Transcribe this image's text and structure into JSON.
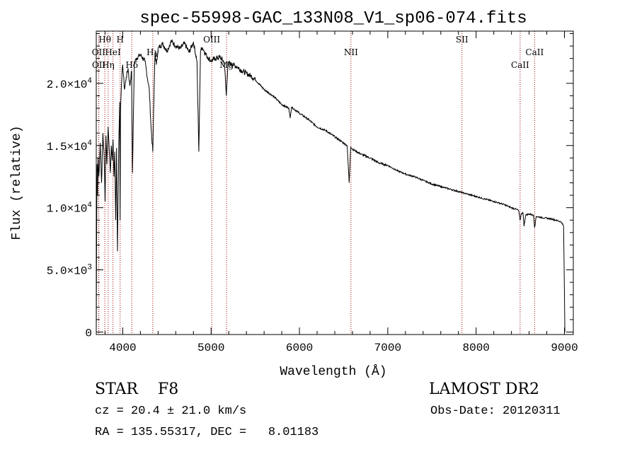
{
  "chart_data": {
    "type": "line",
    "title": "spec-55998-GAC_133N08_V1_sp06-074.fits",
    "xlabel": "Wavelength (Å)",
    "ylabel": "Flux (relative)",
    "xlim": [
      3700,
      9100
    ],
    "ylim": [
      -200,
      24200
    ],
    "x_ticks": [
      4000,
      5000,
      6000,
      7000,
      8000,
      9000
    ],
    "x_tick_labels": [
      "4000",
      "5000",
      "6000",
      "7000",
      "8000",
      "9000"
    ],
    "y_ticks": [
      0,
      5000,
      10000,
      15000,
      20000
    ],
    "y_tick_labels": [
      {
        "mantissa": "0",
        "exp": ""
      },
      {
        "mantissa": "5.0×10",
        "exp": "3"
      },
      {
        "mantissa": "1.0×10",
        "exp": "4"
      },
      {
        "mantissa": "1.5×10",
        "exp": "4"
      },
      {
        "mantissa": "2.0×10",
        "exp": "4"
      }
    ],
    "series": [
      {
        "name": "spectrum",
        "x": [
          3700,
          3705,
          3710,
          3715,
          3720,
          3730,
          3745,
          3760,
          3775,
          3790,
          3800,
          3810,
          3820,
          3835,
          3850,
          3860,
          3870,
          3880,
          3890,
          3900,
          3910,
          3920,
          3930,
          3940,
          3955,
          3965,
          3970,
          3975,
          3985,
          4000,
          4020,
          4040,
          4060,
          4080,
          4100,
          4110,
          4130,
          4150,
          4200,
          4250,
          4300,
          4320,
          4340,
          4350,
          4365,
          4380,
          4400,
          4450,
          4500,
          4550,
          4600,
          4650,
          4700,
          4750,
          4800,
          4840,
          4861,
          4880,
          4900,
          4950,
          5000,
          5050,
          5100,
          5150,
          5172,
          5190,
          5250,
          5300,
          5350,
          5400,
          5450,
          5500,
          5600,
          5700,
          5800,
          5880,
          5895,
          5910,
          6000,
          6100,
          6200,
          6300,
          6400,
          6500,
          6540,
          6563,
          6580,
          6600,
          6700,
          6800,
          6900,
          7000,
          7100,
          7200,
          7300,
          7400,
          7500,
          7600,
          7700,
          7800,
          7900,
          8000,
          8100,
          8200,
          8300,
          8400,
          8480,
          8498,
          8510,
          8530,
          8542,
          8560,
          8600,
          8650,
          8662,
          8680,
          8750,
          8850,
          8900,
          8950,
          8970,
          8990,
          9000,
          9005
        ],
        "y": [
          0,
          9000,
          13500,
          11000,
          14000,
          12500,
          15200,
          12000,
          16000,
          14000,
          10500,
          15800,
          13500,
          16500,
          14200,
          12800,
          15000,
          13800,
          15500,
          12500,
          14500,
          9000,
          14800,
          6500,
          15000,
          18500,
          9000,
          17800,
          20000,
          21500,
          19500,
          20500,
          21200,
          19800,
          21000,
          12800,
          21500,
          22000,
          22300,
          21800,
          19500,
          16500,
          14500,
          18000,
          22500,
          21500,
          22800,
          23200,
          22600,
          23400,
          23000,
          22800,
          23200,
          22500,
          23300,
          21800,
          14500,
          22600,
          22900,
          22200,
          21800,
          22000,
          22100,
          21700,
          19000,
          21600,
          21500,
          21300,
          21000,
          20800,
          20600,
          20300,
          19500,
          19000,
          18300,
          18000,
          17200,
          18100,
          17600,
          17100,
          16500,
          16200,
          15700,
          15200,
          15000,
          12000,
          14900,
          14700,
          14300,
          14000,
          13600,
          13400,
          13000,
          12700,
          12500,
          12200,
          11900,
          11700,
          11500,
          11300,
          11100,
          10900,
          10700,
          10500,
          10300,
          10000,
          9800,
          9000,
          9500,
          9600,
          8500,
          9400,
          9500,
          9400,
          8400,
          9300,
          9200,
          9100,
          9000,
          8900,
          8800,
          8500,
          3000,
          0
        ]
      }
    ],
    "lines": [
      {
        "name": "Hθ",
        "wave": 3797,
        "row": 0
      },
      {
        "name": "H",
        "wave": 3970,
        "row": 0
      },
      {
        "name": "OII",
        "wave": 3727,
        "row": 1
      },
      {
        "name": "HeI",
        "wave": 3889,
        "row": 1
      },
      {
        "name": "OII",
        "wave": 3729,
        "row": 2
      },
      {
        "name": "Hη",
        "wave": 3835,
        "row": 2
      },
      {
        "name": "Hδ",
        "wave": 4102,
        "row": 3
      },
      {
        "name": "Hγ",
        "wave": 4340,
        "row": 1
      },
      {
        "name": "OIII",
        "wave": 5007,
        "row": 0
      },
      {
        "name": "Mg",
        "wave": 5175,
        "row": 2
      },
      {
        "name": "NII",
        "wave": 6583,
        "row": 1
      },
      {
        "name": "SII",
        "wave": 7840,
        "row": 0
      },
      {
        "name": "CaII",
        "wave": 8498,
        "row": 2
      },
      {
        "name": "CaII",
        "wave": 8662,
        "row": 1
      }
    ]
  },
  "footer": {
    "class": "STAR    F8",
    "survey": "LAMOST DR2",
    "cz": "cz = 20.4 ± 21.0 km/s",
    "obs_date": "Obs-Date: 20120311",
    "radec": "RA = 135.55317, DEC =   8.01183"
  }
}
